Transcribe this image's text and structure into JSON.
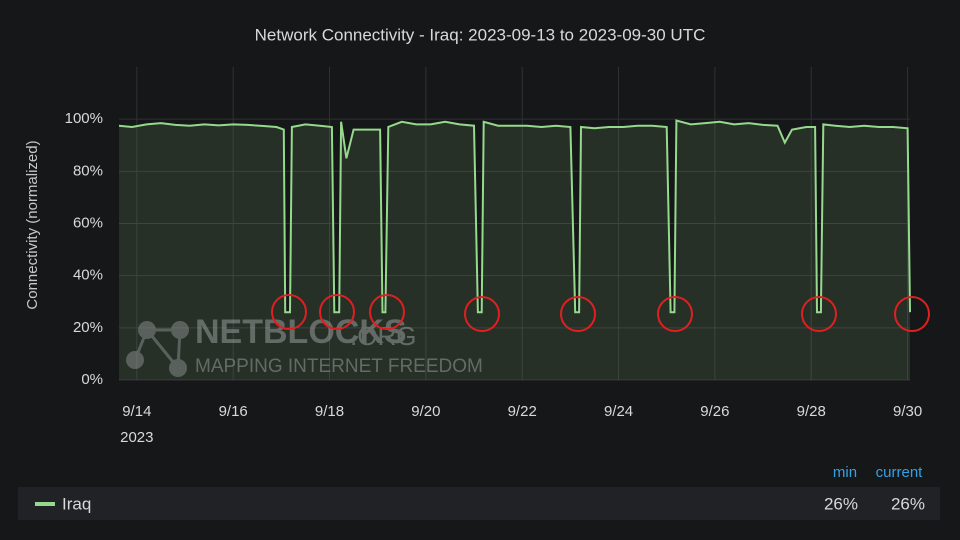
{
  "chart_data": {
    "type": "line",
    "title": "Network Connectivity - Iraq: 2023-09-13 to 2023-09-30 UTC",
    "ylabel": "Connectivity (normalized)",
    "xlim": [
      13.63,
      30.05
    ],
    "ylim": [
      0,
      120
    ],
    "xticks": [
      {
        "value": 14,
        "label": "9/14"
      },
      {
        "value": 16,
        "label": "9/16"
      },
      {
        "value": 18,
        "label": "9/18"
      },
      {
        "value": 20,
        "label": "9/20"
      },
      {
        "value": 22,
        "label": "9/22"
      },
      {
        "value": 24,
        "label": "9/24"
      },
      {
        "value": 26,
        "label": "9/26"
      },
      {
        "value": 28,
        "label": "9/28"
      },
      {
        "value": 30,
        "label": "9/30"
      }
    ],
    "x_year": "2023",
    "yticks": [
      {
        "value": 0,
        "label": "0%"
      },
      {
        "value": 20,
        "label": "20%"
      },
      {
        "value": 40,
        "label": "40%"
      },
      {
        "value": 60,
        "label": "60%"
      },
      {
        "value": 80,
        "label": "80%"
      },
      {
        "value": 100,
        "label": "100%"
      }
    ],
    "grid": true,
    "series": [
      {
        "name": "Iraq",
        "color": "#96d98d",
        "x": [
          13.63,
          13.9,
          14.2,
          14.5,
          14.8,
          15.1,
          15.4,
          15.7,
          16.0,
          16.3,
          16.6,
          16.9,
          17.05,
          17.08,
          17.18,
          17.22,
          17.5,
          17.8,
          18.05,
          18.1,
          18.2,
          18.24,
          18.35,
          18.5,
          18.8,
          19.05,
          19.1,
          19.16,
          19.22,
          19.5,
          19.8,
          20.1,
          20.4,
          20.7,
          21.0,
          21.08,
          21.16,
          21.2,
          21.5,
          21.8,
          22.1,
          22.4,
          22.7,
          23.0,
          23.1,
          23.18,
          23.22,
          23.5,
          23.8,
          24.1,
          24.4,
          24.7,
          25.0,
          25.08,
          25.16,
          25.2,
          25.5,
          25.8,
          26.1,
          26.4,
          26.7,
          27.0,
          27.3,
          27.45,
          27.6,
          27.9,
          28.08,
          28.12,
          28.2,
          28.25,
          28.5,
          28.8,
          29.1,
          29.4,
          29.7,
          30.0,
          30.05
        ],
        "values": [
          97.5,
          97,
          98,
          98.5,
          97.8,
          97.5,
          98,
          97.6,
          98,
          97.8,
          97.4,
          97,
          96,
          26,
          26,
          97,
          98,
          97.5,
          97,
          26,
          26,
          99,
          85,
          96,
          96,
          96,
          26,
          26,
          97,
          99,
          98,
          98,
          99,
          98,
          97.5,
          26,
          26,
          99,
          97.5,
          97.5,
          97.5,
          97,
          97.5,
          97,
          26,
          26,
          97,
          96.5,
          97,
          97,
          97.5,
          97.5,
          97,
          26,
          26,
          99.5,
          98,
          98.5,
          99,
          98,
          98.5,
          97.8,
          97.5,
          91,
          96,
          97,
          97,
          26,
          26,
          98,
          97.5,
          97,
          97.5,
          97,
          97,
          96.5,
          26
        ]
      }
    ],
    "stats": {
      "headers": [
        "min",
        "current"
      ],
      "values": [
        26,
        26
      ],
      "value_labels": [
        "26%",
        "26%"
      ]
    },
    "watermark": [
      "NETBLOCKS",
      ".ORG",
      "MAPPING INTERNET FREEDOM"
    ]
  }
}
